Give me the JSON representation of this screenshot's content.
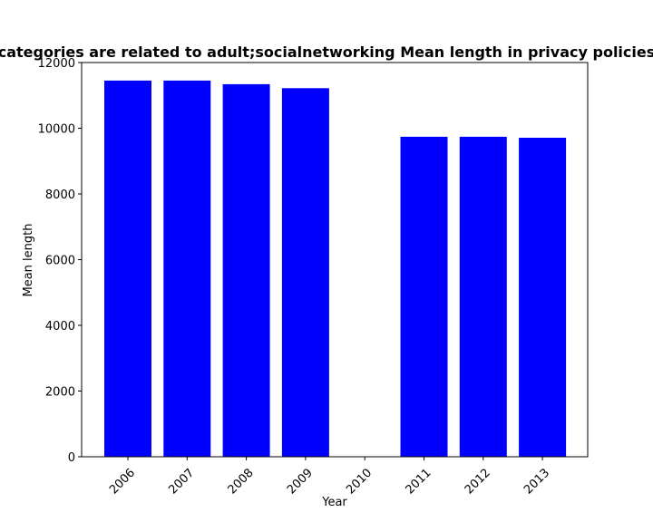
{
  "chart_data": {
    "type": "bar",
    "title": "categories are related to adult;socialnetworking Mean length in privacy policies",
    "xlabel": "Year",
    "ylabel": "Mean length",
    "categories": [
      "2006",
      "2007",
      "2008",
      "2009",
      "2010",
      "2011",
      "2012",
      "2013"
    ],
    "values": [
      11450,
      11450,
      11340,
      11220,
      0,
      9740,
      9740,
      9710
    ],
    "ylim": [
      0,
      12000
    ],
    "yticks": [
      0,
      2000,
      4000,
      6000,
      8000,
      10000,
      12000
    ],
    "ytick_labels": [
      "0",
      "2000",
      "4000",
      "6000",
      "8000",
      "10000",
      "12000"
    ],
    "bar_color": "#0000ff",
    "grid": false,
    "legend": "none"
  }
}
